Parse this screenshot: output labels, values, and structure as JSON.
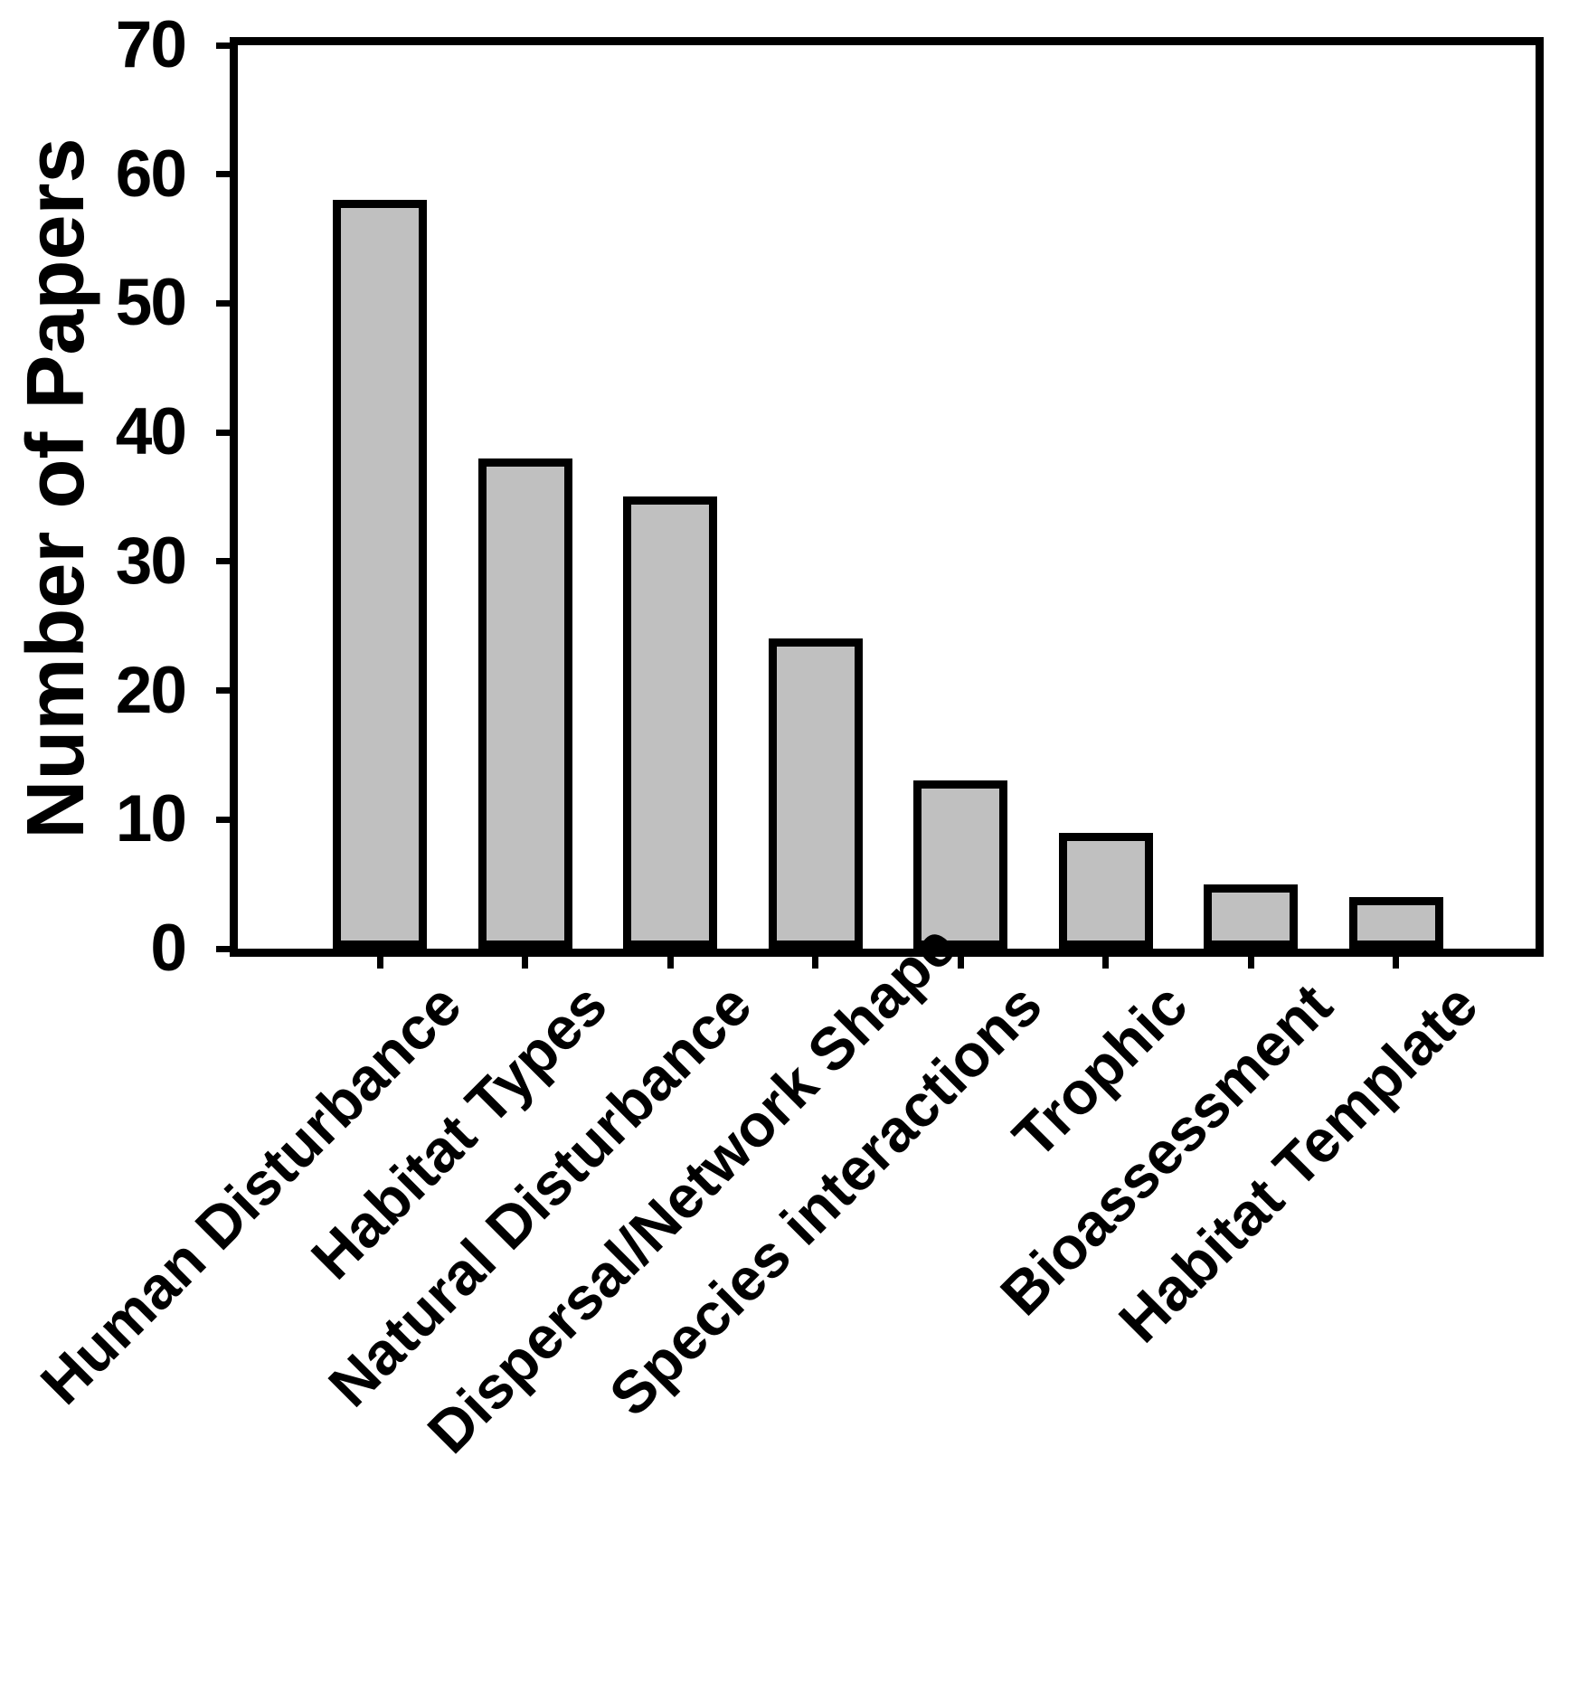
{
  "chart_data": {
    "type": "bar",
    "title": "",
    "xlabel": "",
    "ylabel": "Number of Papers",
    "categories": [
      "Human Disturbance",
      "Habitat Types",
      "Natural Disturbance",
      "Dispersal/Network Shape",
      "Species interactions",
      "Trophic",
      "Bioassessment",
      "Habitat Template"
    ],
    "values": [
      58,
      38,
      35,
      24,
      13,
      9,
      5,
      4
    ],
    "ylim": [
      0,
      70
    ],
    "yticks": [
      0,
      10,
      20,
      30,
      40,
      50,
      60,
      70
    ],
    "grid": false,
    "legend": false,
    "colors": {
      "bar_fill": "#c0c0c0",
      "bar_border": "#000000",
      "axis": "#000000",
      "background": "#ffffff",
      "text": "#000000"
    }
  }
}
